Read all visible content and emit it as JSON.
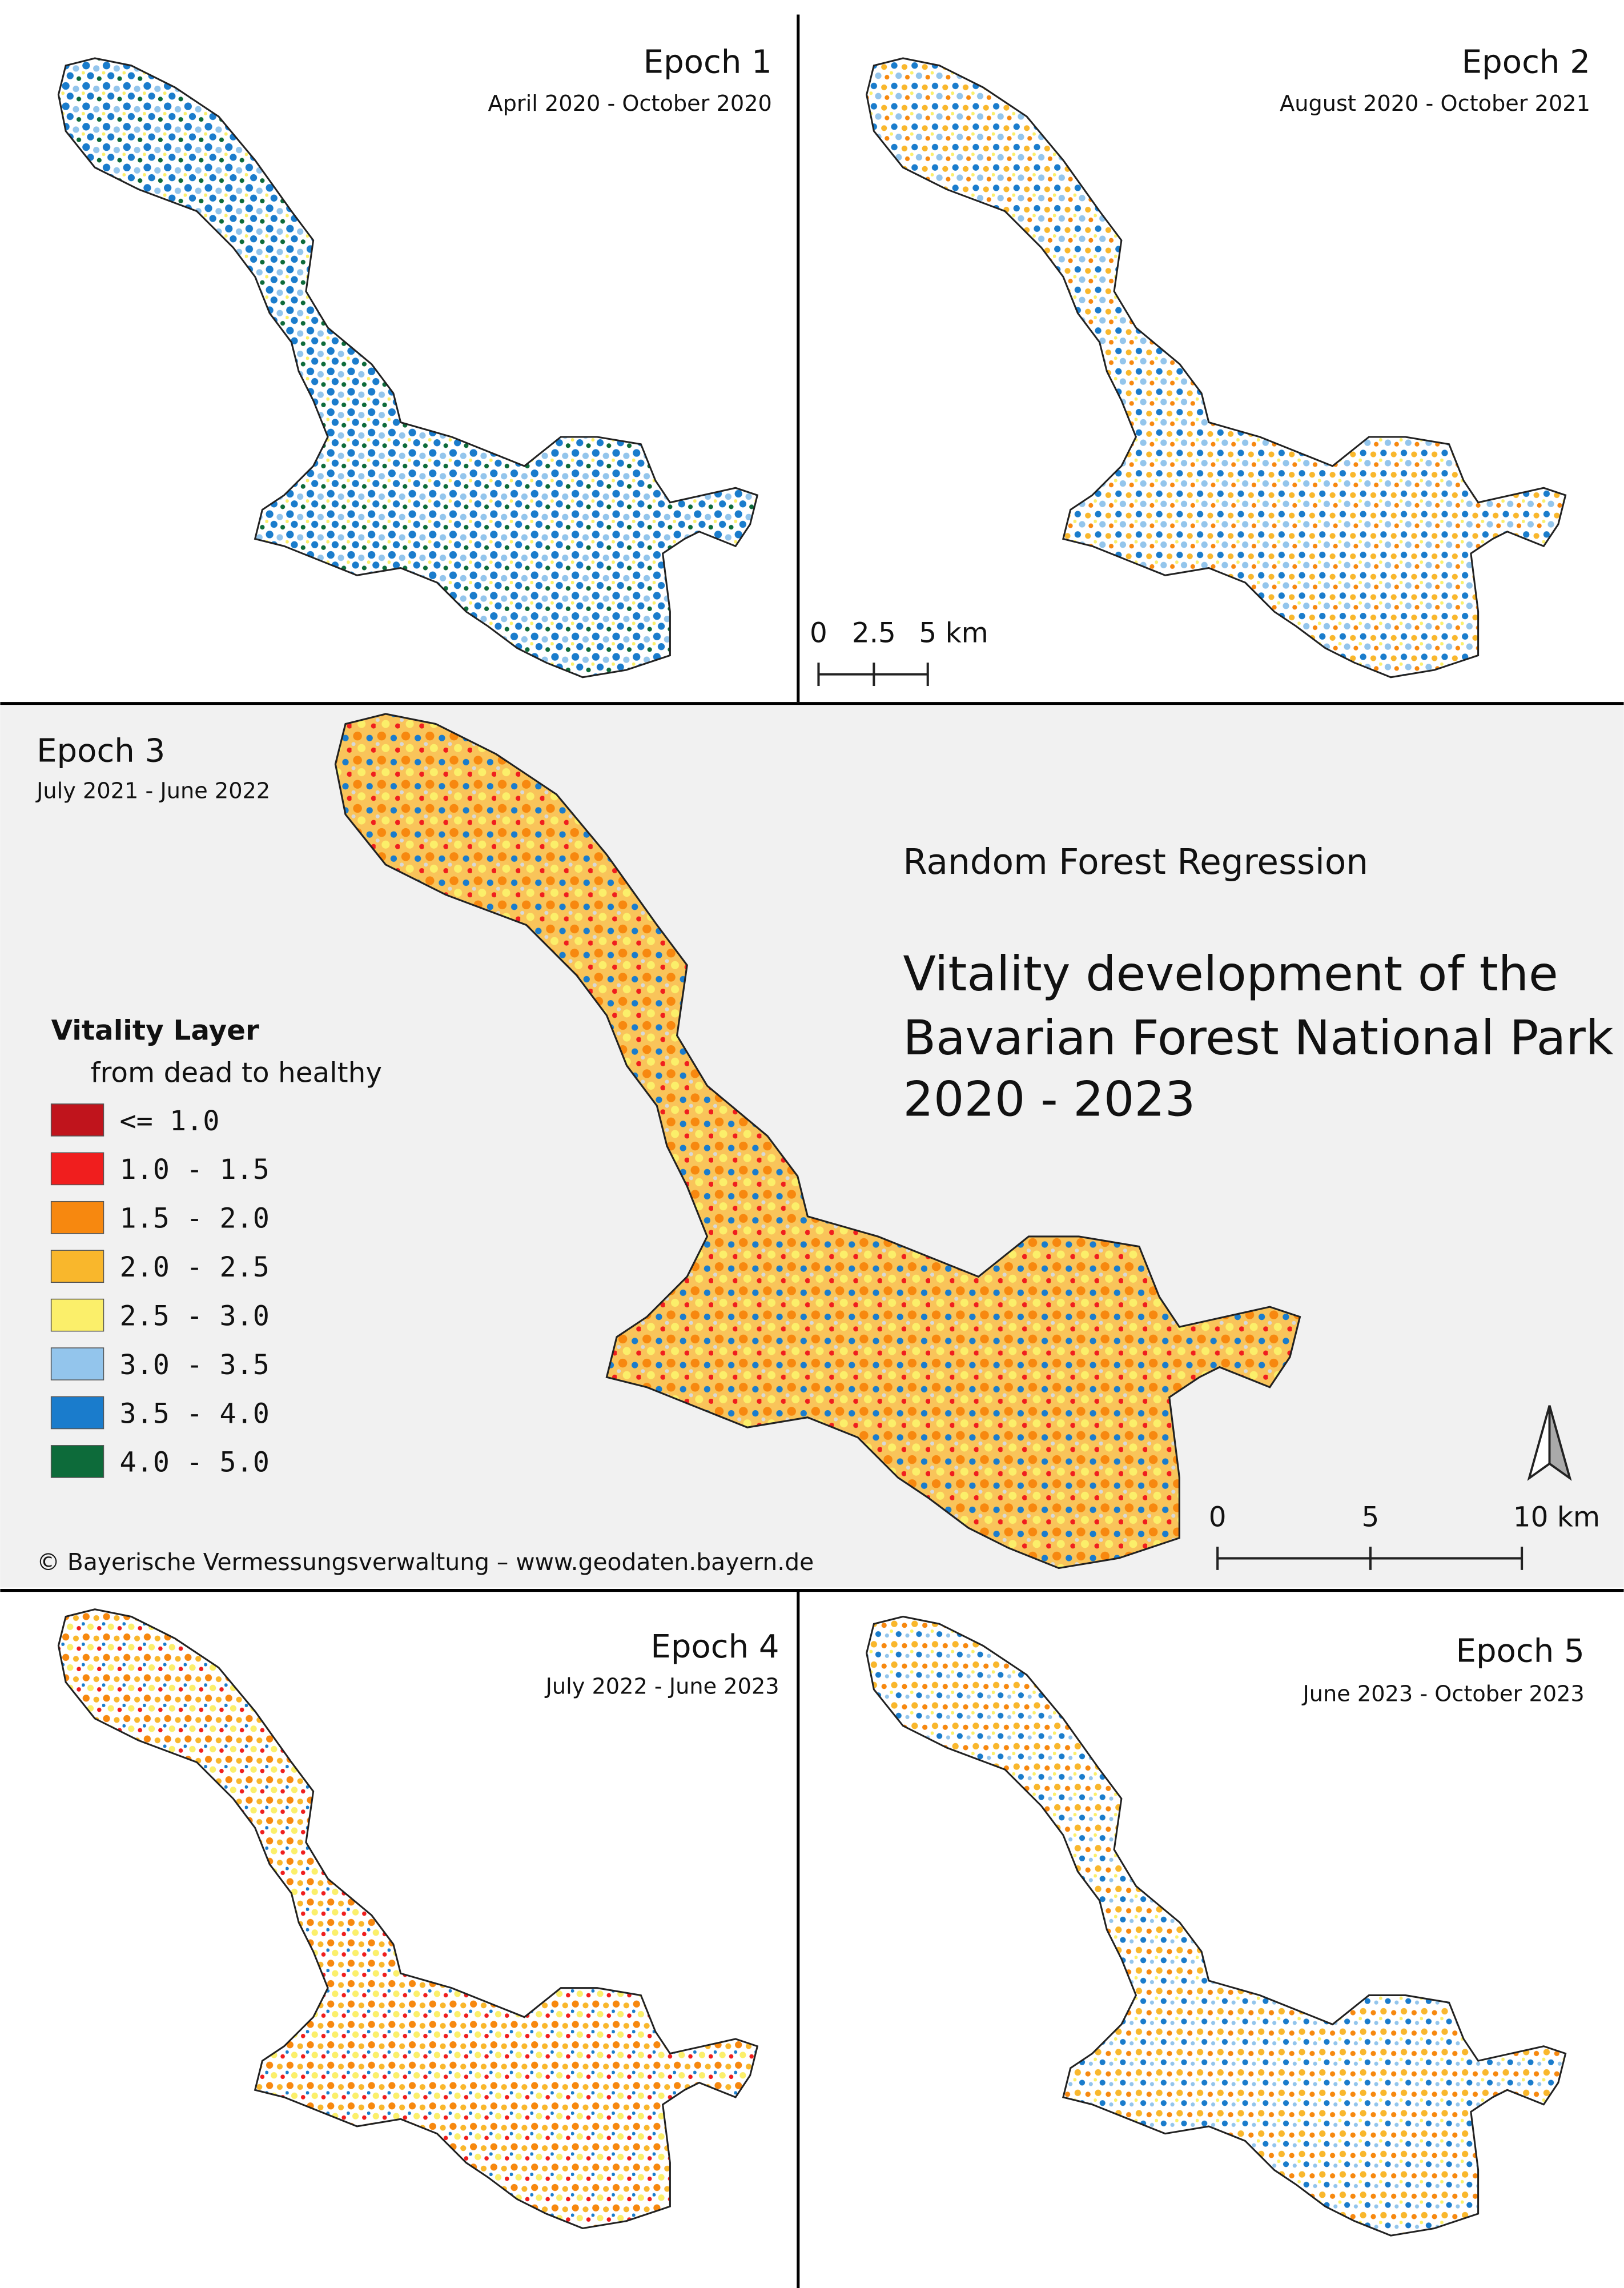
{
  "title": {
    "method": "Random Forest Regression",
    "lines": [
      "Vitality development of the",
      "Bavarian Forest National Park",
      "2020 - 2023"
    ]
  },
  "epochs": [
    {
      "name": "Epoch 1",
      "period": "April 2020 - October 2020"
    },
    {
      "name": "Epoch 2",
      "period": "August 2020 - October 2021"
    },
    {
      "name": "Epoch 3",
      "period": "July 2021 - June 2022"
    },
    {
      "name": "Epoch 4",
      "period": "July 2022 - June 2023"
    },
    {
      "name": "Epoch 5",
      "period": "June 2023 - October 2023"
    }
  ],
  "legend": {
    "title": "Vitality Layer",
    "subtitle": "from dead to healthy",
    "items": [
      {
        "label": "<= 1.0",
        "color": "#c0141c"
      },
      {
        "label": "1.0 - 1.5",
        "color": "#f01e1e"
      },
      {
        "label": "1.5 - 2.0",
        "color": "#f7880f"
      },
      {
        "label": "2.0 - 2.5",
        "color": "#f9b72c"
      },
      {
        "label": "2.5 - 3.0",
        "color": "#fbef6a"
      },
      {
        "label": "3.0 - 3.5",
        "color": "#93c5ec"
      },
      {
        "label": "3.5 - 4.0",
        "color": "#1a7ccc"
      },
      {
        "label": "4.0 - 5.0",
        "color": "#0d6b3a"
      }
    ]
  },
  "scale_bars": [
    {
      "labels": [
        "0",
        "2.5",
        "5 km"
      ]
    },
    {
      "labels": [
        "0",
        "5",
        "10 km"
      ]
    }
  ],
  "credit": "© Bayerische Vermessungsverwaltung – www.geodaten.bayern.de"
}
